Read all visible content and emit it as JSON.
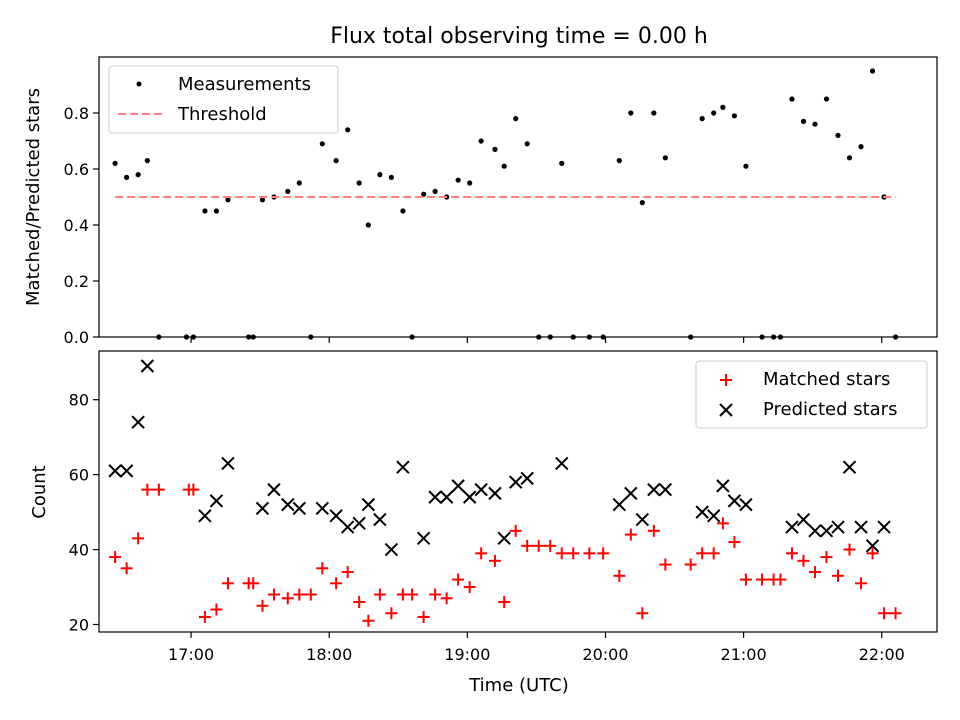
{
  "chart_data": [
    {
      "type": "scatter",
      "title": "Flux total observing time = 0.00 h",
      "xlabel": "",
      "ylabel": "Matched/Predicted stars",
      "xlim": [
        "16:20",
        "22:24"
      ],
      "ylim": [
        0,
        1.0
      ],
      "yticks": [
        "0.0",
        "0.2",
        "0.4",
        "0.6",
        "0.8"
      ],
      "grid": false,
      "legend_position": "top-left",
      "series": [
        {
          "name": "Measurements",
          "style": "dot",
          "color": "#000000",
          "points": [
            [
              "16:27",
              0.62
            ],
            [
              "16:32",
              0.57
            ],
            [
              "16:37",
              0.58
            ],
            [
              "16:41",
              0.63
            ],
            [
              "16:46",
              0.0
            ],
            [
              "16:58",
              0.0
            ],
            [
              "17:01",
              0.0
            ],
            [
              "17:06",
              0.45
            ],
            [
              "17:11",
              0.45
            ],
            [
              "17:16",
              0.49
            ],
            [
              "17:25",
              0.0
            ],
            [
              "17:27",
              0.0
            ],
            [
              "17:31",
              0.49
            ],
            [
              "17:36",
              0.5
            ],
            [
              "17:42",
              0.52
            ],
            [
              "17:47",
              0.55
            ],
            [
              "17:52",
              0.0
            ],
            [
              "17:57",
              0.69
            ],
            [
              "18:03",
              0.63
            ],
            [
              "18:08",
              0.74
            ],
            [
              "18:13",
              0.55
            ],
            [
              "18:17",
              0.4
            ],
            [
              "18:22",
              0.58
            ],
            [
              "18:27",
              0.57
            ],
            [
              "18:32",
              0.45
            ],
            [
              "18:36",
              0.0
            ],
            [
              "18:41",
              0.51
            ],
            [
              "18:46",
              0.52
            ],
            [
              "18:51",
              0.5
            ],
            [
              "18:56",
              0.56
            ],
            [
              "19:01",
              0.55
            ],
            [
              "19:06",
              0.7
            ],
            [
              "19:12",
              0.67
            ],
            [
              "19:16",
              0.61
            ],
            [
              "19:21",
              0.78
            ],
            [
              "19:26",
              0.69
            ],
            [
              "19:31",
              0.0
            ],
            [
              "19:36",
              0.0
            ],
            [
              "19:41",
              0.62
            ],
            [
              "19:46",
              0.0
            ],
            [
              "19:53",
              0.0
            ],
            [
              "19:59",
              0.0
            ],
            [
              "20:06",
              0.63
            ],
            [
              "20:11",
              0.8
            ],
            [
              "20:16",
              0.48
            ],
            [
              "20:21",
              0.8
            ],
            [
              "20:26",
              0.64
            ],
            [
              "20:37",
              0.0
            ],
            [
              "20:42",
              0.78
            ],
            [
              "20:47",
              0.8
            ],
            [
              "20:51",
              0.82
            ],
            [
              "20:56",
              0.79
            ],
            [
              "21:01",
              0.61
            ],
            [
              "21:08",
              0.0
            ],
            [
              "21:13",
              0.0
            ],
            [
              "21:16",
              0.0
            ],
            [
              "21:21",
              0.85
            ],
            [
              "21:26",
              0.77
            ],
            [
              "21:31",
              0.76
            ],
            [
              "21:36",
              0.85
            ],
            [
              "21:41",
              0.72
            ],
            [
              "21:46",
              0.64
            ],
            [
              "21:51",
              0.68
            ],
            [
              "21:56",
              0.95
            ],
            [
              "22:01",
              0.5
            ],
            [
              "22:06",
              0.0
            ]
          ]
        },
        {
          "name": "Threshold",
          "style": "dashed-line",
          "color": "#ff7f7f",
          "points": [
            [
              "16:27",
              0.5
            ],
            [
              "22:06",
              0.5
            ]
          ]
        }
      ]
    },
    {
      "type": "scatter",
      "title": "",
      "xlabel": "Time (UTC)",
      "ylabel": "Count",
      "xlim": [
        "16:20",
        "22:24"
      ],
      "ylim": [
        18,
        93
      ],
      "xticks": [
        "17:00",
        "18:00",
        "19:00",
        "20:00",
        "21:00",
        "22:00"
      ],
      "yticks": [
        "20",
        "40",
        "60",
        "80"
      ],
      "grid": false,
      "legend_position": "top-right",
      "series": [
        {
          "name": "Matched stars",
          "style": "plus",
          "color": "#ff0000",
          "points": [
            [
              "16:27",
              38
            ],
            [
              "16:32",
              35
            ],
            [
              "16:37",
              43
            ],
            [
              "16:41",
              56
            ],
            [
              "16:46",
              56
            ],
            [
              "16:59",
              56
            ],
            [
              "17:01",
              56
            ],
            [
              "17:06",
              22
            ],
            [
              "17:11",
              24
            ],
            [
              "17:16",
              31
            ],
            [
              "17:25",
              31
            ],
            [
              "17:27",
              31
            ],
            [
              "17:31",
              25
            ],
            [
              "17:36",
              28
            ],
            [
              "17:42",
              27
            ],
            [
              "17:47",
              28
            ],
            [
              "17:52",
              28
            ],
            [
              "17:57",
              35
            ],
            [
              "18:03",
              31
            ],
            [
              "18:08",
              34
            ],
            [
              "18:13",
              26
            ],
            [
              "18:17",
              21
            ],
            [
              "18:22",
              28
            ],
            [
              "18:27",
              23
            ],
            [
              "18:32",
              28
            ],
            [
              "18:36",
              28
            ],
            [
              "18:41",
              22
            ],
            [
              "18:46",
              28
            ],
            [
              "18:51",
              27
            ],
            [
              "18:56",
              32
            ],
            [
              "19:01",
              30
            ],
            [
              "19:06",
              39
            ],
            [
              "19:12",
              37
            ],
            [
              "19:16",
              26
            ],
            [
              "19:21",
              45
            ],
            [
              "19:26",
              41
            ],
            [
              "19:31",
              41
            ],
            [
              "19:36",
              41
            ],
            [
              "19:41",
              39
            ],
            [
              "19:46",
              39
            ],
            [
              "19:53",
              39
            ],
            [
              "19:59",
              39
            ],
            [
              "20:06",
              33
            ],
            [
              "20:11",
              44
            ],
            [
              "20:16",
              23
            ],
            [
              "20:21",
              45
            ],
            [
              "20:26",
              36
            ],
            [
              "20:37",
              36
            ],
            [
              "20:42",
              39
            ],
            [
              "20:47",
              39
            ],
            [
              "20:51",
              47
            ],
            [
              "20:56",
              42
            ],
            [
              "21:01",
              32
            ],
            [
              "21:08",
              32
            ],
            [
              "21:13",
              32
            ],
            [
              "21:16",
              32
            ],
            [
              "21:21",
              39
            ],
            [
              "21:26",
              37
            ],
            [
              "21:31",
              34
            ],
            [
              "21:36",
              38
            ],
            [
              "21:41",
              33
            ],
            [
              "21:46",
              40
            ],
            [
              "21:51",
              31
            ],
            [
              "21:56",
              39
            ],
            [
              "22:01",
              23
            ],
            [
              "22:06",
              23
            ]
          ]
        },
        {
          "name": "Predicted stars",
          "style": "x",
          "color": "#000000",
          "points": [
            [
              "16:27",
              61
            ],
            [
              "16:32",
              61
            ],
            [
              "16:37",
              74
            ],
            [
              "16:41",
              89
            ],
            [
              "17:06",
              49
            ],
            [
              "17:11",
              53
            ],
            [
              "17:16",
              63
            ],
            [
              "17:31",
              51
            ],
            [
              "17:36",
              56
            ],
            [
              "17:42",
              52
            ],
            [
              "17:47",
              51
            ],
            [
              "17:57",
              51
            ],
            [
              "18:03",
              49
            ],
            [
              "18:08",
              46
            ],
            [
              "18:13",
              47
            ],
            [
              "18:17",
              52
            ],
            [
              "18:22",
              48
            ],
            [
              "18:27",
              40
            ],
            [
              "18:32",
              62
            ],
            [
              "18:41",
              43
            ],
            [
              "18:46",
              54
            ],
            [
              "18:51",
              54
            ],
            [
              "18:56",
              57
            ],
            [
              "19:01",
              54
            ],
            [
              "19:06",
              56
            ],
            [
              "19:12",
              55
            ],
            [
              "19:16",
              43
            ],
            [
              "19:21",
              58
            ],
            [
              "19:26",
              59
            ],
            [
              "19:41",
              63
            ],
            [
              "20:06",
              52
            ],
            [
              "20:11",
              55
            ],
            [
              "20:16",
              48
            ],
            [
              "20:21",
              56
            ],
            [
              "20:26",
              56
            ],
            [
              "20:42",
              50
            ],
            [
              "20:47",
              49
            ],
            [
              "20:51",
              57
            ],
            [
              "20:56",
              53
            ],
            [
              "21:01",
              52
            ],
            [
              "21:21",
              46
            ],
            [
              "21:26",
              48
            ],
            [
              "21:31",
              45
            ],
            [
              "21:36",
              45
            ],
            [
              "21:41",
              46
            ],
            [
              "21:46",
              62
            ],
            [
              "21:51",
              46
            ],
            [
              "21:56",
              41
            ],
            [
              "22:01",
              46
            ]
          ]
        }
      ]
    }
  ]
}
